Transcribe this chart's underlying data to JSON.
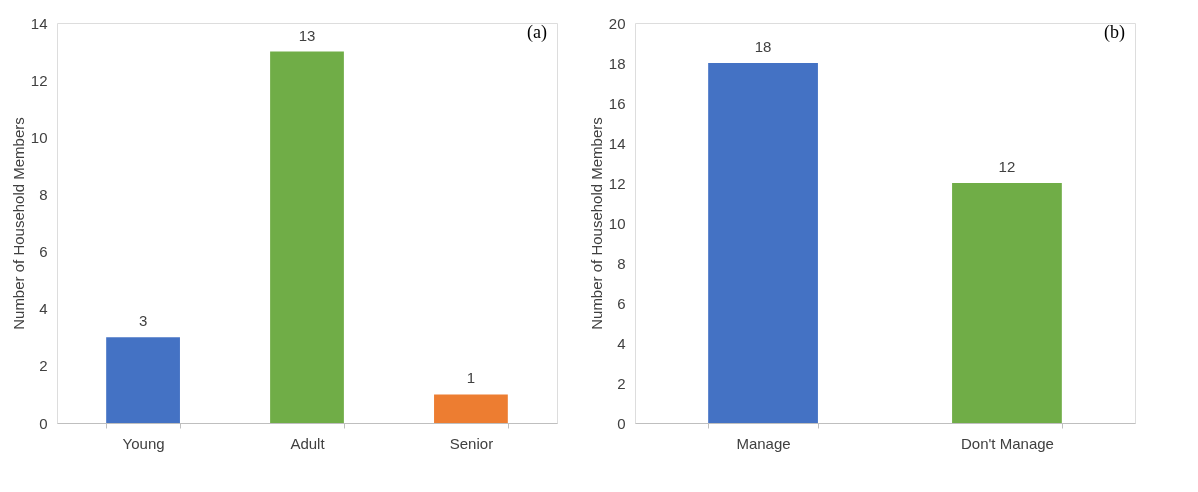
{
  "chart_data": [
    {
      "type": "bar",
      "ylabel": "Number of Household Members",
      "categories": [
        "Young",
        "Adult",
        "Senior"
      ],
      "values": [
        3,
        13,
        1
      ],
      "colors": [
        "#4472c4",
        "#70ad47",
        "#ed7d31"
      ],
      "ylim": [
        0,
        14
      ],
      "yticks": [
        0,
        2,
        4,
        6,
        8,
        10,
        12,
        14
      ],
      "data_labels": true,
      "grid": false,
      "annotations": [
        "(a)"
      ]
    },
    {
      "type": "bar",
      "ylabel": "Number of Household Members",
      "categories": [
        "Manage",
        "Don't Manage"
      ],
      "values": [
        18,
        12
      ],
      "colors": [
        "#4472c4",
        "#70ad47"
      ],
      "ylim": [
        0,
        20
      ],
      "yticks": [
        0,
        2,
        4,
        6,
        8,
        10,
        12,
        14,
        16,
        18,
        20
      ],
      "data_labels": true,
      "grid": false,
      "annotations": [
        "(b)"
      ]
    }
  ]
}
